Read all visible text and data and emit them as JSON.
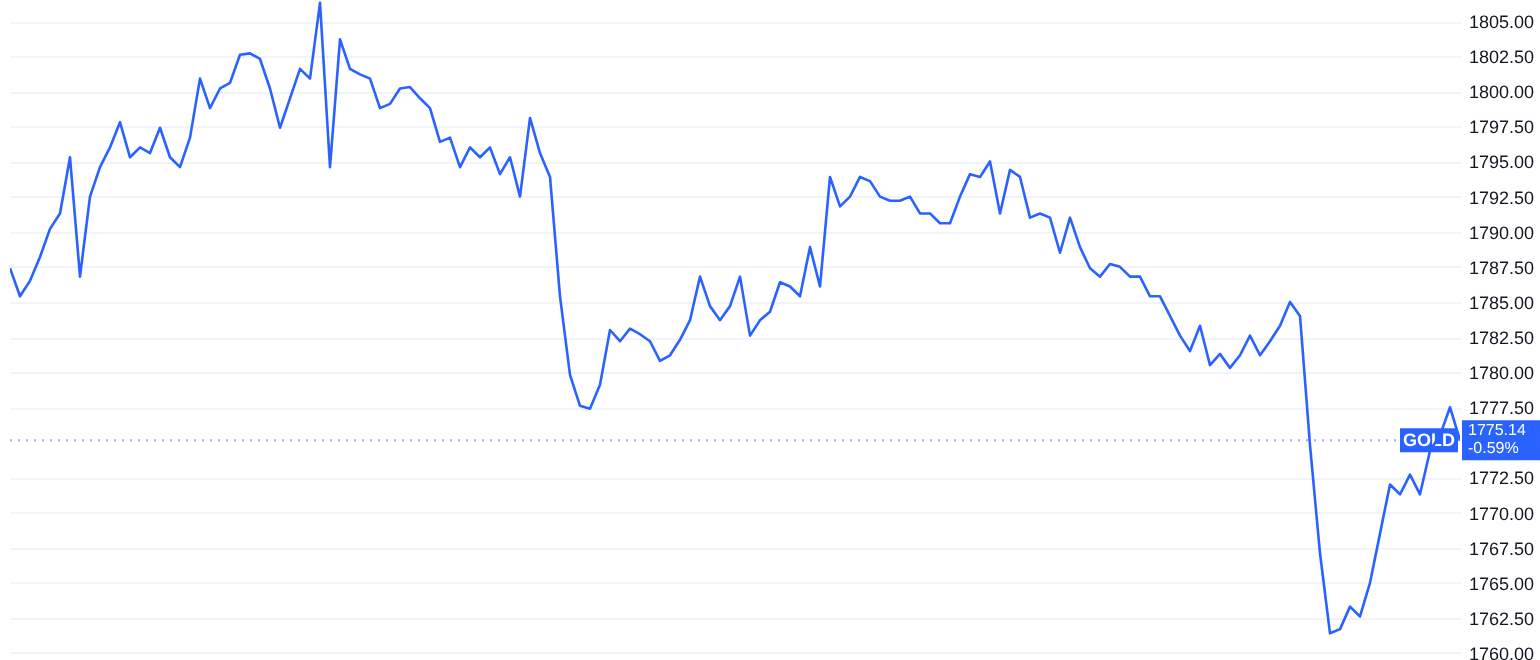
{
  "chart_data": {
    "type": "line",
    "categories": [
      null,
      null,
      null,
      null,
      null,
      null,
      null,
      null,
      null,
      null,
      null,
      null,
      null,
      null,
      null,
      null,
      null,
      null,
      null,
      null,
      null,
      null,
      null,
      null,
      null,
      null,
      null,
      null,
      null,
      null,
      null,
      null,
      null,
      null,
      null,
      null,
      null,
      null,
      null,
      null,
      null,
      null,
      null,
      null,
      null,
      null,
      null,
      null,
      null,
      null,
      null,
      null,
      null,
      null,
      null,
      null,
      null,
      null,
      null,
      null,
      null,
      null,
      null,
      null,
      null,
      null,
      null,
      null,
      null,
      null,
      null,
      null,
      null,
      null,
      null,
      null,
      null,
      null,
      null,
      null,
      null,
      null,
      null,
      null,
      null,
      null,
      null,
      null,
      null,
      null,
      null,
      null,
      null,
      null,
      null,
      null,
      null,
      null,
      null,
      null,
      null,
      null,
      null,
      null,
      null,
      null,
      null,
      null,
      null,
      null,
      null,
      null,
      null,
      null,
      null,
      null,
      null,
      null,
      null,
      null,
      null,
      null,
      null,
      null,
      null,
      null,
      null,
      null,
      null,
      null,
      null,
      null,
      null,
      null,
      null,
      null,
      null,
      null,
      null,
      null,
      null,
      null,
      null,
      null,
      null,
      null
    ],
    "series": [
      {
        "color": "#2962ff",
        "values": [
          1787.4,
          1785.4,
          1786.5,
          1788.2,
          1790.2,
          1791.3,
          1795.3,
          1786.8,
          1792.5,
          1794.6,
          1796.0,
          1797.8,
          1795.3,
          1796.0,
          1795.6,
          1797.4,
          1795.3,
          1794.6,
          1796.7,
          1800.9,
          1798.8,
          1800.2,
          1800.6,
          1802.6,
          1802.7,
          1802.3,
          1800.2,
          1797.4,
          1799.5,
          1801.6,
          1800.9,
          1806.3,
          1794.6,
          1803.7,
          1801.6,
          1801.2,
          1800.9,
          1798.8,
          1799.1,
          1800.2,
          1800.3,
          1799.5,
          1798.8,
          1796.4,
          1796.7,
          1794.6,
          1796.0,
          1795.3,
          1796.0,
          1794.1,
          1795.3,
          1792.5,
          1798.1,
          1795.6,
          1793.9,
          1785.4,
          1779.8,
          1777.6,
          1777.4,
          1779.1,
          1783.0,
          1782.2,
          1783.1,
          1782.7,
          1782.2,
          1780.8,
          1781.2,
          1782.3,
          1783.7,
          1786.8,
          1784.7,
          1783.7,
          1784.7,
          1786.8,
          1782.6,
          1783.7,
          1784.3,
          1786.4,
          1786.1,
          1785.4,
          1788.9,
          1786.1,
          1793.9,
          1791.8,
          1792.5,
          1793.9,
          1793.6,
          1792.5,
          1792.2,
          1792.2,
          1792.5,
          1791.3,
          1791.3,
          1790.6,
          1790.6,
          1792.5,
          1794.1,
          1793.9,
          1795.0,
          1791.3,
          1794.4,
          1793.9,
          1791.0,
          1791.3,
          1791.0,
          1788.5,
          1791.0,
          1788.9,
          1787.4,
          1786.8,
          1787.7,
          1787.5,
          1786.8,
          1786.8,
          1785.4,
          1785.4,
          1784.0,
          1782.6,
          1781.5,
          1783.3,
          1780.5,
          1781.3,
          1780.3,
          1781.2,
          1782.6,
          1781.2,
          1782.2,
          1783.3,
          1785.0,
          1784.0,
          1774.8,
          1767.1,
          1761.4,
          1761.7,
          1763.3,
          1762.6,
          1765.0,
          1768.5,
          1772.0,
          1771.3,
          1772.7,
          1771.3,
          1774.4,
          1775.5,
          1777.5,
          1775.14
        ]
      }
    ],
    "ylim": [
      1759.5,
      1806.5
    ],
    "yticks": [
      {
        "value": 1760,
        "label": "1760.00"
      },
      {
        "value": 1762.5,
        "label": "1762.50"
      },
      {
        "value": 1765,
        "label": "1765.00"
      },
      {
        "value": 1767.5,
        "label": "1767.50"
      },
      {
        "value": 1770,
        "label": "1770.00"
      },
      {
        "value": 1772.5,
        "label": "1772.50"
      },
      {
        "value": 1777.5,
        "label": "1777.50"
      },
      {
        "value": 1780,
        "label": "1780.00"
      },
      {
        "value": 1782.5,
        "label": "1782.50"
      },
      {
        "value": 1785,
        "label": "1785.00"
      },
      {
        "value": 1787.5,
        "label": "1787.50"
      },
      {
        "value": 1790,
        "label": "1790.00"
      },
      {
        "value": 1792.5,
        "label": "1792.50"
      },
      {
        "value": 1795,
        "label": "1795.00"
      },
      {
        "value": 1797.5,
        "label": "1797.50"
      },
      {
        "value": 1800,
        "label": "1800.00"
      },
      {
        "value": 1802.5,
        "label": "1802.50"
      },
      {
        "value": 1805,
        "label": "1805.00"
      }
    ],
    "grid": "y",
    "tick_labels": "y",
    "ref_lines": [
      {
        "axis": "y",
        "value": 1775.14,
        "label": "GOLD",
        "color": "#2962ff",
        "line_style": "dotted"
      }
    ],
    "annotations": [
      "1775.14",
      "-0.59%"
    ]
  }
}
